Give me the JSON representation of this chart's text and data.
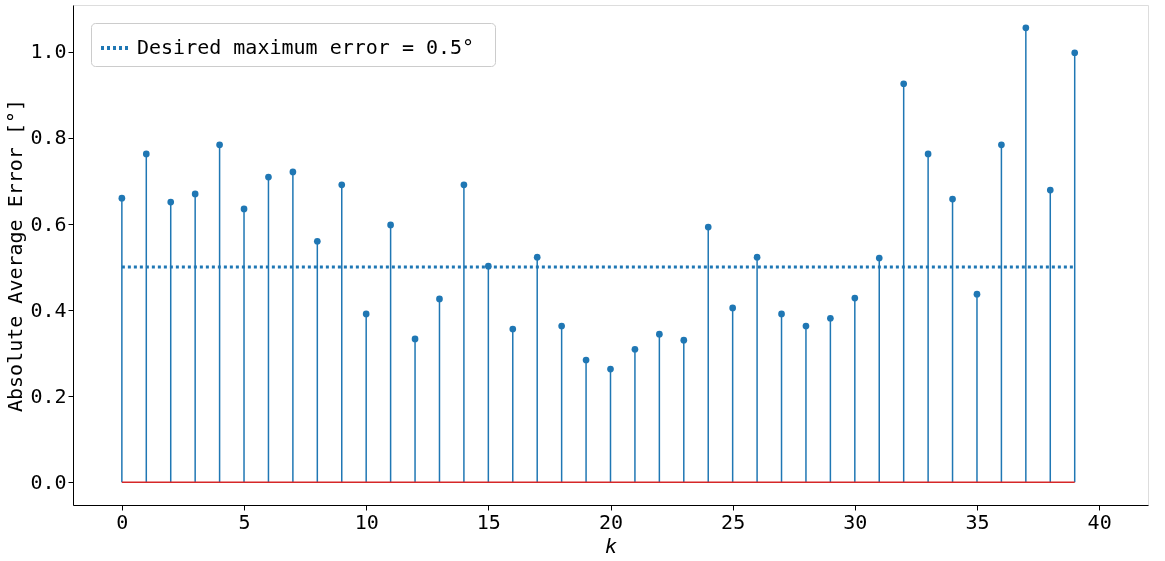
{
  "chart_data": {
    "type": "lollipop",
    "xlabel": "k",
    "ylabel": "Absolute Average Error [°]",
    "x": [
      0,
      1,
      2,
      3,
      4,
      5,
      6,
      7,
      8,
      9,
      10,
      11,
      12,
      13,
      14,
      15,
      16,
      17,
      18,
      19,
      20,
      21,
      22,
      23,
      24,
      25,
      26,
      27,
      28,
      29,
      30,
      31,
      32,
      33,
      34,
      35,
      36,
      37,
      38,
      39
    ],
    "series": [
      {
        "color": "#1f77b4",
        "values": [
          0.66,
          0.763,
          0.651,
          0.67,
          0.784,
          0.635,
          0.709,
          0.721,
          0.56,
          0.691,
          0.391,
          0.598,
          0.333,
          0.426,
          0.691,
          0.502,
          0.356,
          0.523,
          0.363,
          0.284,
          0.263,
          0.309,
          0.344,
          0.33,
          0.593,
          0.405,
          0.523,
          0.391,
          0.363,
          0.381,
          0.428,
          0.521,
          0.926,
          0.763,
          0.658,
          0.437,
          0.784,
          1.056,
          0.679,
          0.998
        ]
      }
    ],
    "xlim": [
      -2,
      42
    ],
    "ylim": [
      -0.053,
      1.109
    ],
    "xticks": [
      0,
      5,
      10,
      15,
      20,
      25,
      30,
      35,
      40
    ],
    "yticks": [
      {
        "value": 0,
        "label": "0.0"
      },
      {
        "value": 0.2,
        "label": "0.2"
      },
      {
        "value": 0.4,
        "label": "0.4"
      },
      {
        "value": 0.6,
        "label": "0.6"
      },
      {
        "value": 0.8,
        "label": "0.8"
      },
      {
        "value": 1.0,
        "label": "1.0"
      }
    ],
    "ref_lines": [
      {
        "axis": "y",
        "value": 0,
        "color": "#d62728",
        "line_style": "solid"
      },
      {
        "axis": "y",
        "value": 0.5,
        "label": "Desired maximum error =  0.5°",
        "color": "#1f77b4",
        "line_style": "dotted"
      }
    ],
    "legend": "top left",
    "grid": false,
    "marker": "circle"
  }
}
